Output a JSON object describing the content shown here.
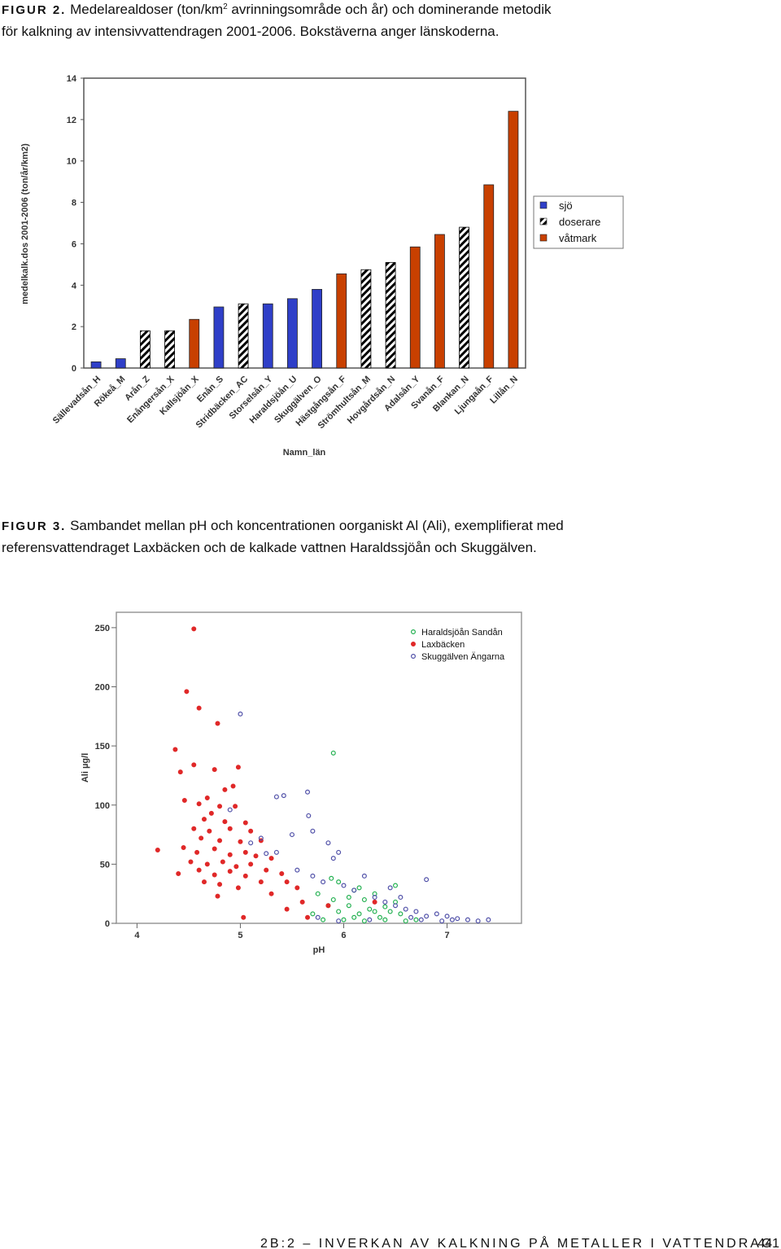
{
  "figure2": {
    "label": "FIGUR 2.",
    "caption": [
      "Medelarealdoser (ton/km",
      "2",
      " avrinningsområde och år) och dominerande metodik",
      "för kalkning av intensivvattendragen 2001-2006. Bokstäverna anger länskoderna."
    ]
  },
  "figure3": {
    "label": "FIGUR 3.",
    "caption": [
      "Sambandet mellan pH och koncentrationen oorganiskt Al (Ali), exemplifierat med",
      "referensvattendraget Laxbäcken och de kalkade vattnen Haraldssjöån och Skuggälven."
    ]
  },
  "footer": {
    "title": "2B:2 – INVERKAN AV KALKNING PÅ METALLER I VATTENDRAG",
    "page": "441"
  },
  "chart_data": [
    {
      "type": "bar",
      "x_label": "Namn_län",
      "y_label": "medelkalk.dos 2001-2006 (ton/år/km2)",
      "categories": [
        "Sällevadsån_H",
        "Rökeå_M",
        "Arån_Z",
        "Enångersån_X",
        "Kallsjöån_X",
        "Enån_S",
        "Stridbäcken_AC",
        "Storselsån_Y",
        "Haraldsjöån_U",
        "Skuggälven_O",
        "Hästgångsån_F",
        "Strömhultsån_M",
        "Hovgårdsån_N",
        "Adalsån_Y",
        "Svanån_F",
        "Blankan_N",
        "Ljungaån_F",
        "Lillån_N"
      ],
      "series": [
        {
          "name": "sjö",
          "color": "#2f3fc8",
          "hatch": false,
          "values": [
            0.3,
            0.45,
            null,
            null,
            null,
            2.95,
            null,
            3.1,
            3.35,
            3.8,
            null,
            null,
            null,
            null,
            null,
            null,
            null,
            null
          ]
        },
        {
          "name": "doserare",
          "color": "#000000",
          "hatch": true,
          "values": [
            null,
            null,
            1.8,
            1.8,
            null,
            null,
            3.1,
            null,
            null,
            null,
            null,
            4.75,
            5.1,
            null,
            null,
            6.8,
            null,
            null
          ]
        },
        {
          "name": "våtmark",
          "color": "#c84000",
          "hatch": false,
          "values": [
            null,
            null,
            null,
            null,
            2.35,
            null,
            null,
            null,
            null,
            null,
            4.55,
            null,
            null,
            5.85,
            6.45,
            null,
            8.85,
            12.4
          ]
        }
      ],
      "ylim": [
        0,
        14
      ],
      "yticks": [
        0,
        2,
        4,
        6,
        8,
        10,
        12,
        14
      ],
      "legend": "right"
    },
    {
      "type": "scatter",
      "x_label": "pH",
      "y_label": "Ali µg/l",
      "xlim": [
        3.8,
        7.72
      ],
      "xticks": [
        4,
        5,
        6,
        7
      ],
      "ylim": [
        0,
        263
      ],
      "yticks": [
        0,
        50,
        100,
        150,
        200,
        250
      ],
      "legend": "upper right",
      "series": [
        {
          "name": "Haraldsjöån Sandån",
          "color": "#22b050",
          "filled": false,
          "x": [
            5.9,
            5.95,
            6.1,
            6.2,
            6.3,
            6.5,
            5.75,
            5.85,
            5.95,
            6.05,
            6.15,
            6.25,
            6.35,
            6.45,
            6.55,
            5.7,
            5.8,
            6.0,
            6.1,
            6.2,
            6.4,
            6.6,
            5.9,
            6.05,
            6.3,
            6.4,
            6.5,
            5.88,
            6.15,
            6.7
          ],
          "values": [
            144,
            35,
            28,
            20,
            25,
            32,
            25,
            15,
            10,
            15,
            8,
            12,
            5,
            10,
            8,
            8,
            3,
            3,
            5,
            2,
            3,
            2,
            20,
            22,
            10,
            14,
            18,
            38,
            30,
            3
          ]
        },
        {
          "name": "Laxbäcken",
          "color": "#e02828",
          "filled": true,
          "x": [
            4.55,
            4.48,
            4.6,
            4.78,
            4.37,
            4.55,
            4.42,
            4.75,
            4.98,
            4.93,
            4.85,
            4.46,
            4.6,
            4.68,
            4.8,
            4.95,
            4.72,
            4.65,
            4.85,
            5.05,
            4.55,
            4.7,
            4.9,
            5.1,
            4.62,
            4.8,
            5.0,
            5.2,
            4.2,
            4.45,
            4.58,
            4.75,
            4.9,
            5.05,
            5.15,
            4.52,
            4.68,
            4.83,
            4.96,
            5.1,
            5.3,
            4.4,
            4.6,
            4.75,
            4.9,
            5.05,
            5.25,
            5.4,
            4.65,
            4.8,
            4.98,
            5.2,
            5.45,
            5.55,
            4.78,
            5.3,
            5.6,
            5.45,
            5.85,
            5.03,
            5.65,
            6.3
          ],
          "values": [
            249,
            196,
            182,
            169,
            147,
            134,
            128,
            130,
            132,
            116,
            113,
            104,
            101,
            106,
            99,
            99,
            93,
            88,
            86,
            85,
            80,
            78,
            80,
            78,
            72,
            70,
            69,
            70,
            62,
            64,
            60,
            63,
            58,
            60,
            57,
            52,
            50,
            52,
            48,
            50,
            55,
            42,
            45,
            41,
            44,
            40,
            45,
            42,
            35,
            33,
            30,
            35,
            35,
            30,
            23,
            25,
            18,
            12,
            15,
            5,
            5,
            18
          ]
        },
        {
          "name": "Skuggälven Ängarna",
          "color": "#5050a8",
          "filled": false,
          "x": [
            5.0,
            5.65,
            5.35,
            5.42,
            5.66,
            4.9,
            5.7,
            5.5,
            5.2,
            5.1,
            5.85,
            5.25,
            5.35,
            5.95,
            5.9,
            6.2,
            6.8,
            5.55,
            5.7,
            5.8,
            6.0,
            6.1,
            6.3,
            6.4,
            6.5,
            6.6,
            6.7,
            6.8,
            6.9,
            7.0,
            7.1,
            7.2,
            7.3,
            7.4,
            6.45,
            6.55,
            6.65,
            6.75,
            6.95,
            7.05,
            5.75,
            5.95,
            6.25
          ],
          "values": [
            177,
            111,
            107,
            108,
            91,
            96,
            78,
            75,
            72,
            68,
            68,
            59,
            60,
            60,
            55,
            40,
            37,
            45,
            40,
            35,
            32,
            28,
            22,
            18,
            15,
            12,
            10,
            6,
            8,
            6,
            4,
            3,
            2,
            3,
            30,
            22,
            5,
            3,
            2,
            3,
            5,
            2,
            3
          ]
        }
      ]
    }
  ]
}
